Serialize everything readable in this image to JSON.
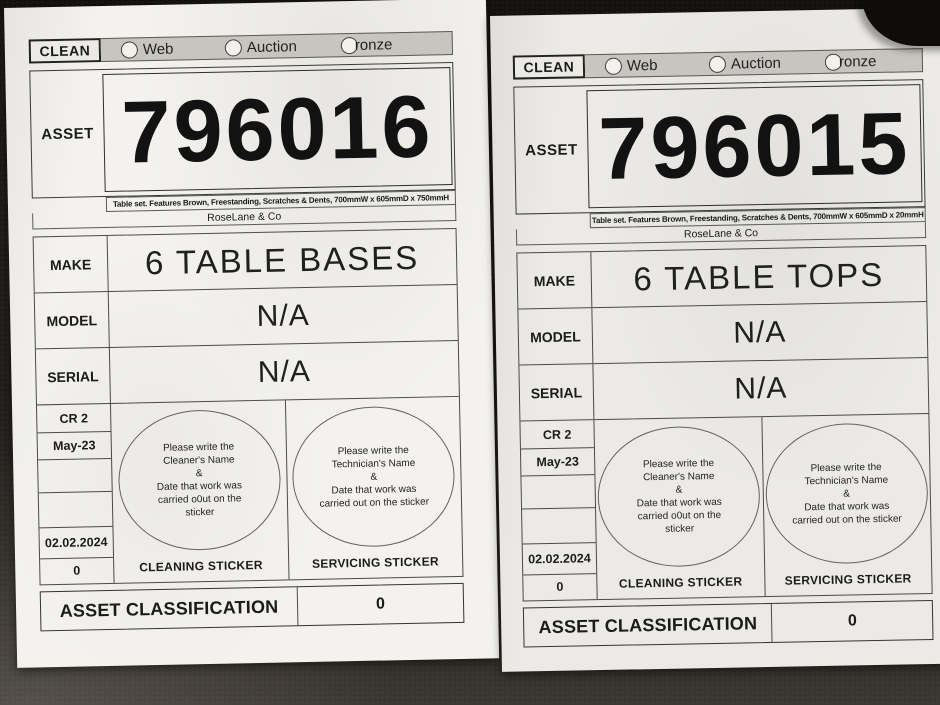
{
  "colors": {
    "paper_left": "#f3f2ee",
    "paper_right": "#ebeae6",
    "header_strip": "#c7c5c0",
    "table_line": "#4a4a48",
    "background_surface": "#211f1c"
  },
  "sheets": [
    {
      "clean_label": "CLEAN",
      "radios": [
        "Web",
        "Auction",
        "ronze"
      ],
      "asset_label": "ASSET",
      "asset_number": "796016",
      "description": "Table set. Features Brown, Freestanding, Scratches & Dents, 700mmW x 605mmD x 750mmH",
      "company": "RoseLane & Co",
      "make_label": "MAKE",
      "make_value": "6 TABLE BASES",
      "model_label": "MODEL",
      "model_value": "N/A",
      "serial_label": "SERIAL",
      "serial_value": "N/A",
      "side_rows": [
        "CR 2",
        "May-23",
        "",
        "",
        "02.02.2024",
        "0"
      ],
      "cleaning_text": "Please write the\nCleaner's Name\n&\nDate that work was\ncarried o0ut on the\nsticker",
      "servicing_text": "Please write the\nTechnician's Name\n&\nDate that work was\ncarried out on the sticker",
      "cleaning_caption": "CLEANING STICKER",
      "servicing_caption": "SERVICING STICKER",
      "classification_label": "ASSET CLASSIFICATION",
      "classification_value": "0"
    },
    {
      "clean_label": "CLEAN",
      "radios": [
        "Web",
        "Auction",
        "ronze"
      ],
      "asset_label": "ASSET",
      "asset_number": "796015",
      "description": "Table set. Features Brown, Freestanding, Scratches & Dents, 700mmW x 605mmD x 20mmH",
      "company": "RoseLane & Co",
      "make_label": "MAKE",
      "make_value": "6 TABLE TOPS",
      "model_label": "MODEL",
      "model_value": "N/A",
      "serial_label": "SERIAL",
      "serial_value": "N/A",
      "side_rows": [
        "CR 2",
        "May-23",
        "",
        "",
        "02.02.2024",
        "0"
      ],
      "cleaning_text": "Please write the\nCleaner's Name\n&\nDate that work was\ncarried o0ut on the\nsticker",
      "servicing_text": "Please write the\nTechnician's Name\n&\nDate that work was\ncarried out on the sticker",
      "cleaning_caption": "CLEANING STICKER",
      "servicing_caption": "SERVICING STICKER",
      "classification_label": "ASSET CLASSIFICATION",
      "classification_value": "0"
    }
  ]
}
